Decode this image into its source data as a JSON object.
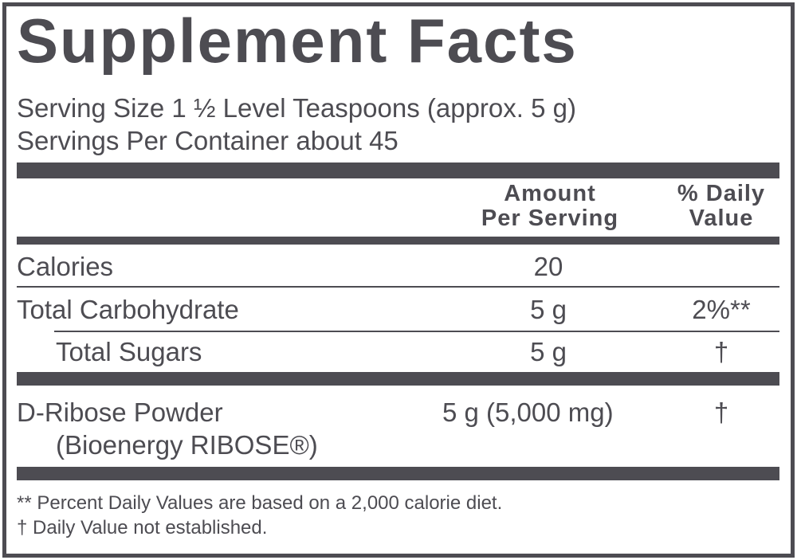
{
  "title": "Supplement Facts",
  "serving_size": "Serving Size 1 ½ Level Teaspoons (approx. 5 g)",
  "servings_per_container": "Servings Per Container about 45",
  "columns": {
    "amount_line1": "Amount",
    "amount_line2": "Per Serving",
    "dv_line1": "% Daily",
    "dv_line2": "Value"
  },
  "rows": [
    {
      "name": "Calories",
      "amount": "20",
      "dv": ""
    },
    {
      "name": "Total Carbohydrate",
      "amount": "5 g",
      "dv": "2%**"
    },
    {
      "name": "Total Sugars",
      "amount": "5 g",
      "dv": "†"
    },
    {
      "name": "D-Ribose Powder",
      "name2": "(Bioenergy RIBOSE®)",
      "amount": "5 g (5,000 mg)",
      "dv": "†"
    }
  ],
  "footnotes": [
    "** Percent Daily Values are based on a 2,000 calorie diet.",
    "† Daily Value not established."
  ],
  "colors": {
    "ink": "#4d4c52"
  }
}
